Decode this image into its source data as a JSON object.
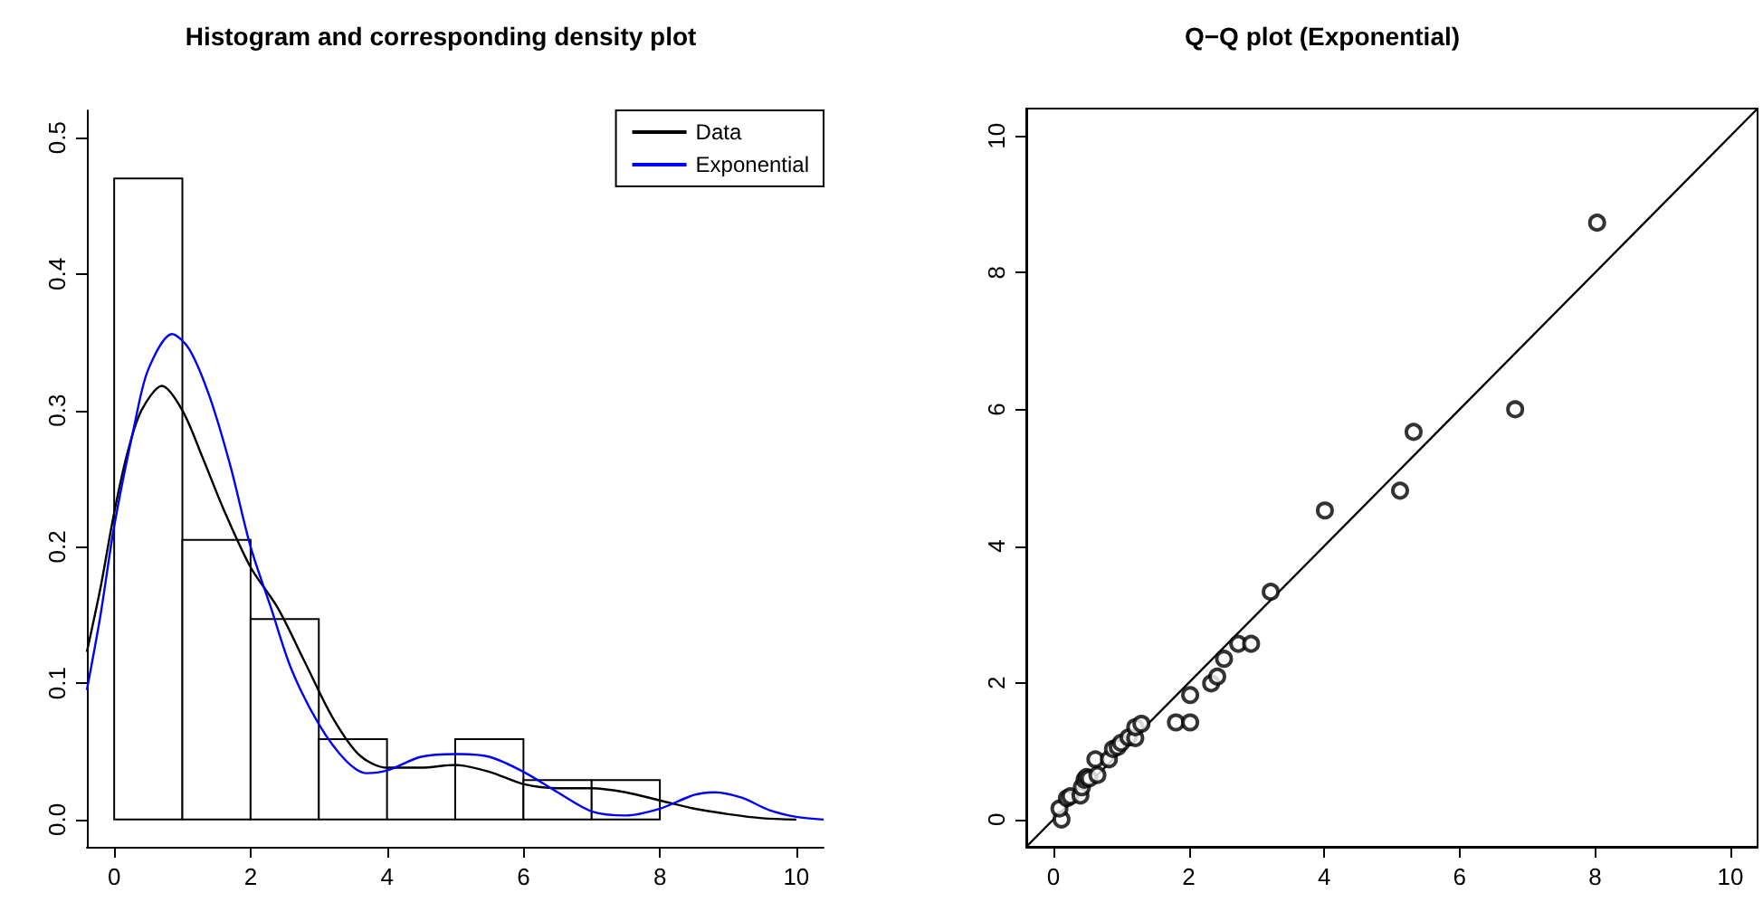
{
  "chart_data": [
    {
      "type": "histogram",
      "title": "Histogram and corresponding density plot",
      "bins": [
        0,
        1,
        2,
        3,
        4,
        5,
        6,
        7,
        8
      ],
      "values": [
        0.47,
        0.205,
        0.147,
        0.059,
        0,
        0.059,
        0.029,
        0.029
      ],
      "color": "#000000",
      "series": [
        {
          "name": "Data",
          "type": "line",
          "color": "#000000",
          "x": [
            -0.4,
            -0.2,
            0,
            0.2,
            0.4,
            0.7,
            1.0,
            1.3,
            1.6,
            2.0,
            2.4,
            2.8,
            3.2,
            3.6,
            4.0,
            4.5,
            5.0,
            5.5,
            6.0,
            6.5,
            7.0,
            7.5,
            8.0,
            8.5,
            9.0,
            9.5,
            10.0
          ],
          "values": [
            0.123,
            0.17,
            0.225,
            0.27,
            0.3,
            0.318,
            0.3,
            0.265,
            0.228,
            0.185,
            0.155,
            0.115,
            0.075,
            0.047,
            0.038,
            0.038,
            0.04,
            0.035,
            0.026,
            0.023,
            0.023,
            0.02,
            0.014,
            0.008,
            0.004,
            0.001,
            0
          ]
        },
        {
          "name": "Exponential",
          "type": "line",
          "color": "#0000ff",
          "x": [
            -0.4,
            -0.2,
            0,
            0.3,
            0.5,
            0.85,
            1.1,
            1.4,
            1.7,
            2.0,
            2.3,
            2.6,
            3.0,
            3.4,
            3.7,
            4.0,
            4.5,
            5.0,
            5.5,
            6.0,
            6.5,
            7.0,
            7.5,
            8.0,
            8.5,
            8.8,
            9.2,
            9.6,
            10.0,
            10.4
          ],
          "values": [
            0.095,
            0.15,
            0.215,
            0.29,
            0.33,
            0.356,
            0.345,
            0.31,
            0.26,
            0.2,
            0.155,
            0.11,
            0.07,
            0.043,
            0.034,
            0.036,
            0.046,
            0.048,
            0.046,
            0.035,
            0.02,
            0.006,
            0.003,
            0.008,
            0.018,
            0.02,
            0.016,
            0.007,
            0.002,
            0
          ]
        }
      ],
      "xlim": [
        -0.4,
        10.4
      ],
      "ylim": [
        -0.02,
        0.52
      ],
      "xticks": [
        0,
        2,
        4,
        6,
        8,
        10
      ],
      "yticks": [
        {
          "value": 0,
          "label": "0.0"
        },
        {
          "value": 0.1,
          "label": "0.1"
        },
        {
          "value": 0.2,
          "label": "0.2"
        },
        {
          "value": 0.3,
          "label": "0.3"
        },
        {
          "value": 0.4,
          "label": "0.4"
        },
        {
          "value": 0.5,
          "label": "0.5"
        }
      ],
      "legend": "top right"
    },
    {
      "type": "scatter",
      "title": "Q−Q plot (Exponential)",
      "series": [
        {
          "type": "scatter",
          "marker": "circle",
          "color": "#000000",
          "x": [
            0.12,
            0.09,
            0.2,
            0.25,
            0.4,
            0.42,
            0.46,
            0.49,
            0.53,
            0.62,
            0.65,
            0.82,
            0.88,
            0.95,
            1.0,
            1.11,
            1.21,
            1.21,
            1.3,
            1.81,
            2.02,
            2.02,
            2.33,
            2.42,
            2.52,
            2.73,
            2.92,
            3.21,
            4.01,
            5.12,
            5.32,
            6.82,
            8.03
          ],
          "values": [
            0.0,
            0.16,
            0.31,
            0.34,
            0.35,
            0.47,
            0.58,
            0.62,
            0.6,
            0.88,
            0.65,
            0.88,
            1.03,
            1.06,
            1.12,
            1.2,
            1.19,
            1.35,
            1.4,
            1.42,
            1.42,
            1.82,
            1.99,
            2.09,
            2.35,
            2.57,
            2.57,
            3.33,
            4.52,
            4.81,
            5.67,
            6.0,
            8.73
          ]
        },
        {
          "type": "line",
          "color": "#000000",
          "x": [
            -0.4,
            10.4
          ],
          "values": [
            -0.4,
            10.4
          ]
        }
      ],
      "xlim": [
        -0.4,
        10.4
      ],
      "ylim": [
        -0.4,
        10.4
      ],
      "xticks": [
        0,
        2,
        4,
        6,
        8,
        10
      ],
      "yticks": [
        0,
        2,
        4,
        6,
        8,
        10
      ]
    }
  ]
}
